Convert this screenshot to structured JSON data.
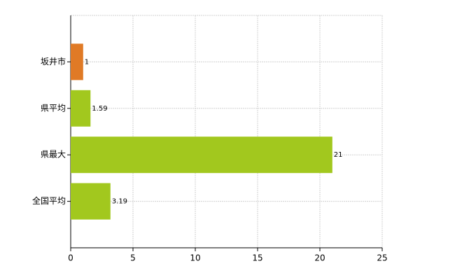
{
  "chart_data": {
    "type": "hbar",
    "categories": [
      "坂井市",
      "県平均",
      "県最大",
      "全国平均"
    ],
    "values": [
      1,
      1.59,
      21,
      3.19
    ],
    "colors": [
      "#e07a26",
      "#a2c81e",
      "#a2c81e",
      "#a2c81e"
    ],
    "xlim": [
      0,
      25
    ],
    "xticks": [
      0,
      5,
      10,
      15,
      20,
      25
    ],
    "grid": true
  }
}
